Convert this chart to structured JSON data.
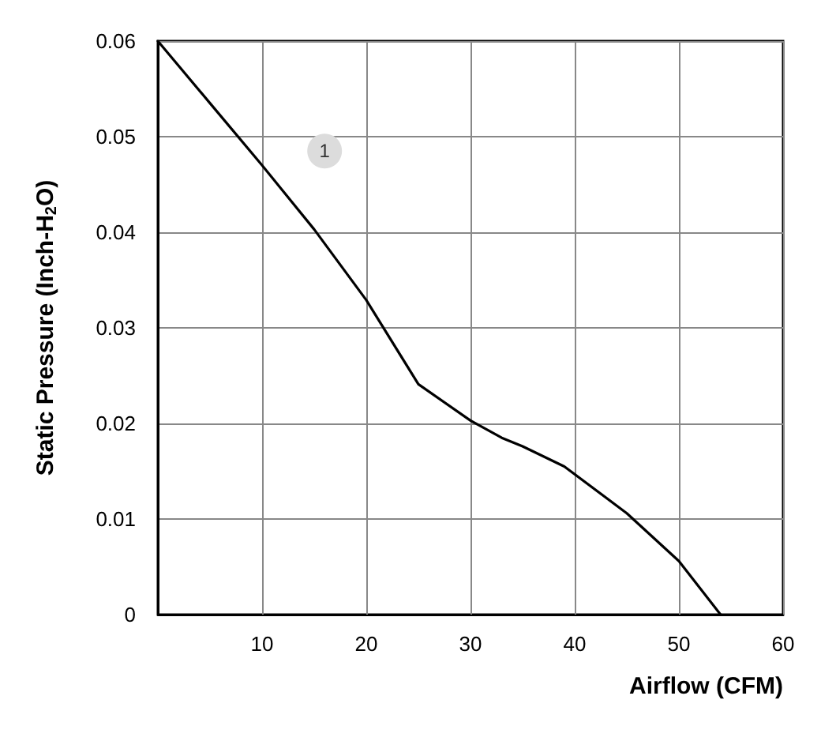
{
  "chart_data": {
    "type": "line",
    "xlabel": "Airflow (CFM)",
    "ylabel": "Static Pressure (Inch-H$_{2}$O)",
    "x": [
      0,
      5,
      10,
      15,
      20,
      25,
      30,
      33,
      35,
      39,
      45,
      50,
      54
    ],
    "series": [
      {
        "color": "#000000",
        "values": [
          0.06,
          0.0535,
          0.047,
          0.0403,
          0.0329,
          0.0241,
          0.0203,
          0.0185,
          0.0176,
          0.0155,
          0.0106,
          0.0056,
          0
        ]
      }
    ],
    "xlim": [
      0,
      60
    ],
    "xticks": [
      10,
      20,
      30,
      40,
      50,
      60
    ],
    "ylim": [
      0,
      0.06
    ],
    "yticks": [
      0,
      0.01,
      0.02,
      0.03,
      0.04,
      0.05,
      0.06
    ],
    "annotations": [
      {
        "text": "1",
        "x": 16,
        "y": 0.0485
      }
    ],
    "grid": true,
    "marker": "none",
    "line_style": "solid"
  }
}
